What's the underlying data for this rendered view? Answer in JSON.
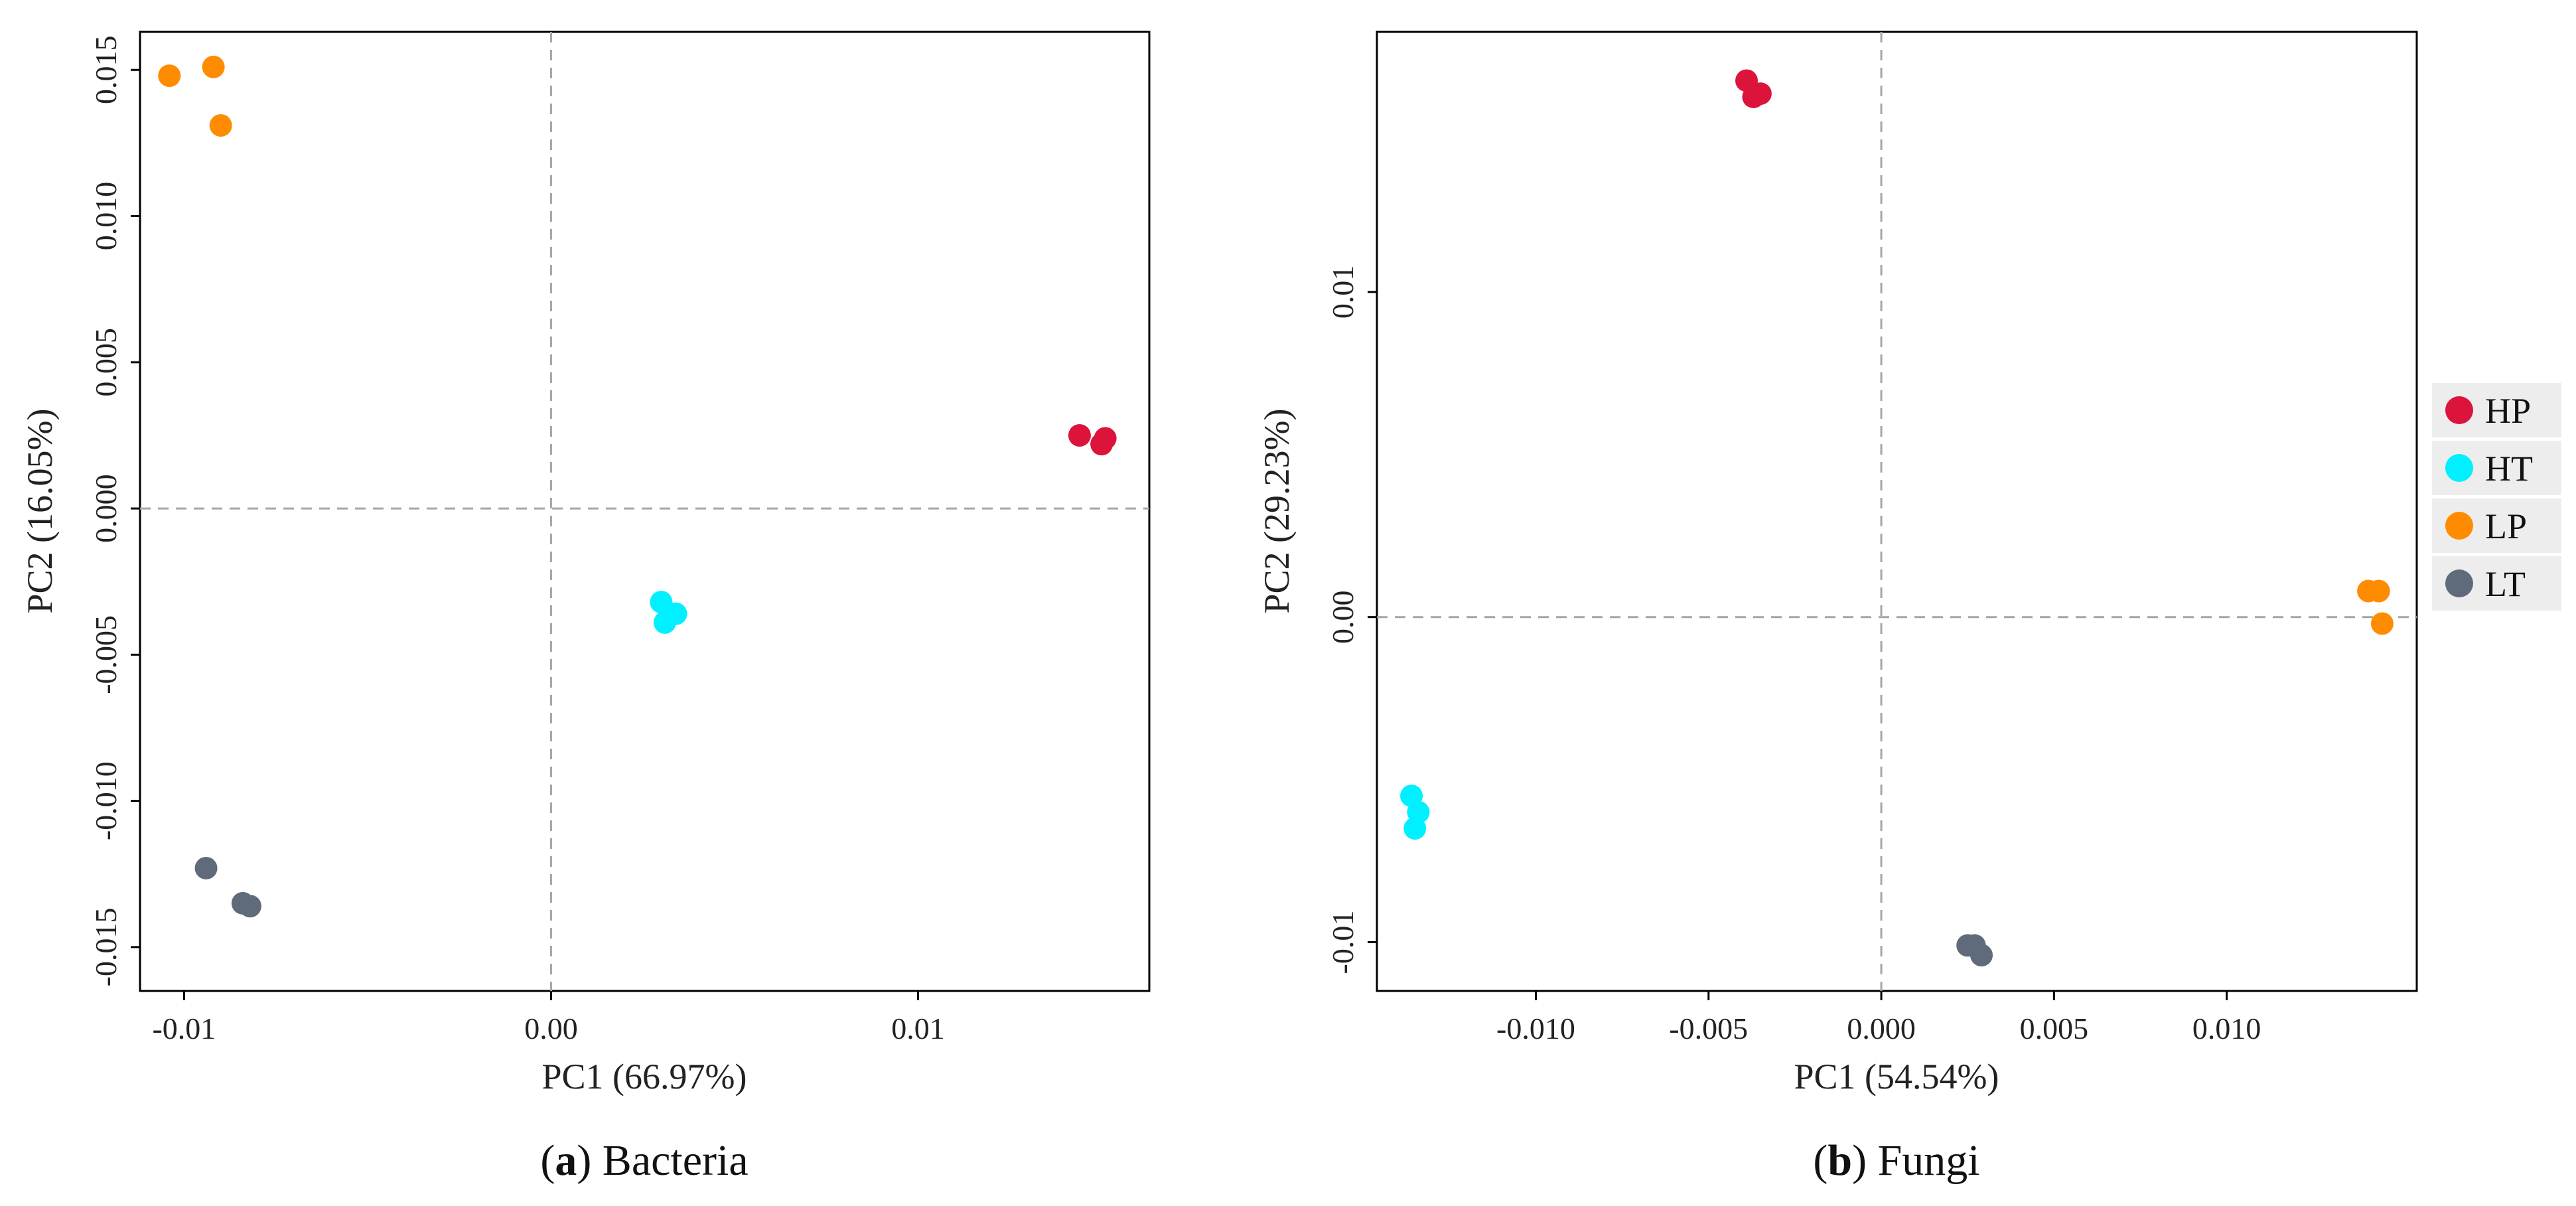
{
  "legend": {
    "items": [
      {
        "label": "HP",
        "color": "#dc143c"
      },
      {
        "label": "HT",
        "color": "#00f0ff"
      },
      {
        "label": "LP",
        "color": "#ff8c00"
      },
      {
        "label": "LT",
        "color": "#5f6b7a"
      }
    ]
  },
  "chart_data": [
    {
      "type": "scatter",
      "panel": "a",
      "caption_letter": "a",
      "caption_text": "Bacteria",
      "xlabel": "PC1 (66.97%)",
      "ylabel": "PC2 (16.05%)",
      "xlim": [
        -0.0112,
        0.0163
      ],
      "ylim": [
        -0.0165,
        0.0163
      ],
      "xticks": [
        -0.01,
        0.0,
        0.01
      ],
      "xtick_labels": [
        "-0.01",
        "0.00",
        "0.01"
      ],
      "yticks": [
        -0.015,
        -0.01,
        -0.005,
        0.0,
        0.005,
        0.01,
        0.015
      ],
      "ytick_labels": [
        "-0.015",
        "-0.010",
        "-0.005",
        "0.000",
        "0.005",
        "0.010",
        "0.015"
      ],
      "reference_lines": {
        "x": 0,
        "y": 0
      },
      "series": [
        {
          "name": "HP",
          "color": "#dc143c",
          "points": [
            [
              0.0144,
              0.0025
            ],
            [
              0.0151,
              0.0024
            ],
            [
              0.015,
              0.0022
            ]
          ]
        },
        {
          "name": "HT",
          "color": "#00f0ff",
          "points": [
            [
              0.003,
              -0.0032
            ],
            [
              0.0034,
              -0.0036
            ],
            [
              0.0031,
              -0.0039
            ]
          ]
        },
        {
          "name": "LP",
          "color": "#ff8c00",
          "points": [
            [
              -0.0104,
              0.0148
            ],
            [
              -0.0092,
              0.0151
            ],
            [
              -0.009,
              0.0131
            ]
          ]
        },
        {
          "name": "LT",
          "color": "#5f6b7a",
          "points": [
            [
              -0.0094,
              -0.0123
            ],
            [
              -0.0084,
              -0.0135
            ],
            [
              -0.0082,
              -0.0136
            ]
          ]
        }
      ]
    },
    {
      "type": "scatter",
      "panel": "b",
      "caption_letter": "b",
      "caption_text": "Fungi",
      "xlabel": "PC1 (54.54%)",
      "ylabel": "PC2 (29.23%)",
      "xlim": [
        -0.0146,
        0.0155
      ],
      "ylim": [
        -0.0115,
        0.018
      ],
      "xticks": [
        -0.01,
        -0.005,
        0.0,
        0.005,
        0.01
      ],
      "xtick_labels": [
        "-0.010",
        "-0.005",
        "0.000",
        "0.005",
        "0.010"
      ],
      "yticks": [
        -0.01,
        0.0,
        0.01
      ],
      "ytick_labels": [
        "-0.01",
        "0.00",
        "0.01"
      ],
      "reference_lines": {
        "x": 0,
        "y": 0
      },
      "series": [
        {
          "name": "HP",
          "color": "#dc143c",
          "points": [
            [
              -0.0039,
              0.0165
            ],
            [
              -0.0037,
              0.016
            ],
            [
              -0.0035,
              0.0161
            ]
          ]
        },
        {
          "name": "HT",
          "color": "#00f0ff",
          "points": [
            [
              -0.0136,
              -0.0055
            ],
            [
              -0.0134,
              -0.006
            ],
            [
              -0.0135,
              -0.0065
            ]
          ]
        },
        {
          "name": "LP",
          "color": "#ff8c00",
          "points": [
            [
              0.0141,
              0.0008
            ],
            [
              0.0144,
              0.0008
            ],
            [
              0.0145,
              -0.0002
            ]
          ]
        },
        {
          "name": "LT",
          "color": "#5f6b7a",
          "points": [
            [
              0.0025,
              -0.0101
            ],
            [
              0.0027,
              -0.0101
            ],
            [
              0.0029,
              -0.0104
            ]
          ]
        }
      ]
    }
  ]
}
